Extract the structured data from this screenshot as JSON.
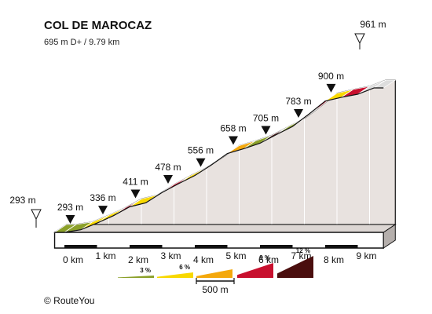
{
  "chart_data": {
    "type": "area",
    "title": "COL DE MAROCAZ",
    "subtitle": "695 m D+ / 9.79 km",
    "distance_labels": [
      "0 km",
      "1 km",
      "2 km",
      "3 km",
      "4 km",
      "5 km",
      "6 km",
      "7 km",
      "8 km",
      "9 km"
    ],
    "km_marks": [
      0,
      1,
      2,
      3,
      4,
      5,
      6,
      7,
      8,
      9
    ],
    "altitude_labels": [
      {
        "km": 0,
        "alt": 293,
        "text": "293 m"
      },
      {
        "km": 1,
        "alt": 336,
        "text": "336 m"
      },
      {
        "km": 2,
        "alt": 411,
        "text": "411 m"
      },
      {
        "km": 3,
        "alt": 478,
        "text": "478 m"
      },
      {
        "km": 4,
        "alt": 556,
        "text": "556 m"
      },
      {
        "km": 5,
        "alt": 658,
        "text": "658 m"
      },
      {
        "km": 6,
        "alt": 705,
        "text": "705 m"
      },
      {
        "km": 7,
        "alt": 783,
        "text": "783 m"
      },
      {
        "km": 8,
        "alt": 900,
        "text": "900 m"
      }
    ],
    "start": {
      "km": -0.3,
      "alt": 293,
      "text": "293 m"
    },
    "end": {
      "km": 9.79,
      "alt": 961,
      "text": "961 m"
    },
    "profile": [
      {
        "km": -0.3,
        "alt": 293
      },
      {
        "km": 0,
        "alt": 293
      },
      {
        "km": 0.5,
        "alt": 305
      },
      {
        "km": 1,
        "alt": 336
      },
      {
        "km": 1.5,
        "alt": 370
      },
      {
        "km": 2,
        "alt": 411
      },
      {
        "km": 2.5,
        "alt": 430
      },
      {
        "km": 3,
        "alt": 478
      },
      {
        "km": 3.5,
        "alt": 518
      },
      {
        "km": 4,
        "alt": 556
      },
      {
        "km": 4.5,
        "alt": 604
      },
      {
        "km": 5,
        "alt": 658
      },
      {
        "km": 5.5,
        "alt": 680
      },
      {
        "km": 6,
        "alt": 705
      },
      {
        "km": 6.5,
        "alt": 745
      },
      {
        "km": 7,
        "alt": 783
      },
      {
        "km": 7.5,
        "alt": 840
      },
      {
        "km": 8,
        "alt": 900
      },
      {
        "km": 8.5,
        "alt": 918
      },
      {
        "km": 9,
        "alt": 932
      },
      {
        "km": 9.5,
        "alt": 961
      },
      {
        "km": 9.79,
        "alt": 961
      }
    ],
    "segment_colors": [
      "#8ba029",
      "#8ba029",
      "#f8d800",
      "#f8d800",
      "#c8102e",
      "#f8d800",
      "#f4a80c",
      "#c8102e",
      "#f8d800",
      "#f4a80c",
      "#4a0e0e",
      "#f4a80c",
      "#8ba029",
      "#4a0e0e",
      "#8ba029",
      "#4a0e0e",
      "#c8102e",
      "#f8d800",
      "#c8102e"
    ],
    "legend": {
      "items": [
        {
          "label": "3 %",
          "color": "#8ba029"
        },
        {
          "label": "6 %",
          "color": "#f8d800"
        },
        {
          "label": "",
          "color": "#f4a80c"
        },
        {
          "label": "9 %",
          "color": "#c8102e"
        },
        {
          "label": "12 %",
          "color": "#4a0e0e"
        }
      ],
      "scale_label": "500 m"
    },
    "colors": {
      "wall": "#e8e2df",
      "outline": "#111111",
      "marker": "#111111"
    },
    "copyright": "© RouteYou"
  }
}
